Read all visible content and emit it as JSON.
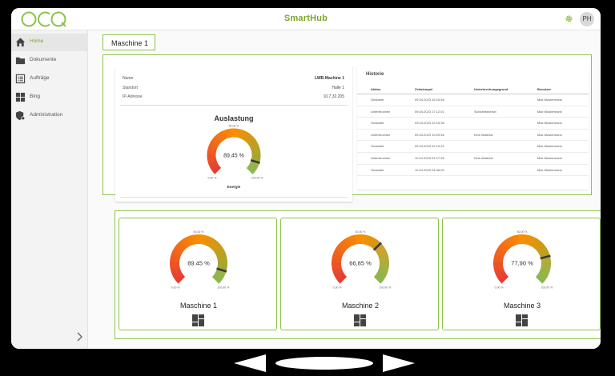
{
  "header": {
    "logo_text": "OCQ",
    "app_title": "SmartHub",
    "user_initials": "PH",
    "settings_icon": "gear-icon"
  },
  "sidebar": {
    "items": [
      {
        "label": "Home",
        "icon": "home-icon",
        "active": true
      },
      {
        "label": "Dokumente",
        "icon": "folder-icon",
        "active": false
      },
      {
        "label": "Aufträge",
        "icon": "list-icon",
        "active": false
      },
      {
        "label": "Bing",
        "icon": "grid-icon",
        "active": false
      },
      {
        "label": "Administration",
        "icon": "shield-gear-icon",
        "active": false
      }
    ],
    "collapse_icon": "chevron-right-icon"
  },
  "page": {
    "title": "Maschine 1"
  },
  "info": {
    "rows": [
      {
        "label": "Name",
        "value": "LWB-Machine 1"
      },
      {
        "label": "Standort",
        "value": "Halle 1"
      },
      {
        "label": "IP-Adresse",
        "value": "10.7.32.205"
      }
    ]
  },
  "main_gauge": {
    "title": "Auslastung",
    "value_text": "89,45 %",
    "value": 89.45,
    "min_label": "0,00 %",
    "mid_label": "50,00 %",
    "max_label": "100,00 %",
    "caption": "Energie"
  },
  "history": {
    "title": "Historie",
    "columns": [
      "Aktion",
      "Zeitstempel",
      "Unterbrechungsgrund",
      "Benutzer"
    ],
    "rows": [
      [
        "Gestartet",
        "09.04.2023 16:10:48",
        "",
        "Max Mustermann"
      ],
      [
        "Unterbrochen",
        "09.04.2023 17:12:01",
        "Schichtwechsel",
        "Max Mustermann"
      ],
      [
        "Gestartet",
        "09.04.2023 19:15:36",
        "",
        "Max Mustermann"
      ],
      [
        "Unterbrochen",
        "09.04.2023 19:29:46",
        "Kein Material",
        "Max Mustermann"
      ],
      [
        "Gestartet",
        "09.04.2023 22:10:24",
        "",
        "Max Mustermann"
      ],
      [
        "Unterbrochen",
        "10.04.2023 01:17:26",
        "Kein Material",
        "Max Mustermann"
      ],
      [
        "Gestartet",
        "10.04.2023 04:48:20",
        "",
        "Max Mustermann"
      ]
    ]
  },
  "machines": [
    {
      "name": "Maschine 1",
      "value": 89.45,
      "value_text": "89.45 %",
      "min_label": "0,00 %",
      "mid_label": "50,00 %",
      "max_label": "100,00 %",
      "icon": "dashboard-grid-icon"
    },
    {
      "name": "Maschine 2",
      "value": 66.85,
      "value_text": "66,85 %",
      "min_label": "0,00 %",
      "mid_label": "50,00 %",
      "max_label": "100,00 %",
      "icon": "dashboard-grid-icon"
    },
    {
      "name": "Maschine 3",
      "value": 77.9,
      "value_text": "77,90 %",
      "min_label": "0,00 %",
      "mid_label": "50,00 %",
      "max_label": "100,00 %",
      "icon": "dashboard-grid-icon"
    }
  ],
  "colors": {
    "accent": "#8bc34a",
    "gauge_low": "#e53935",
    "gauge_mid": "#fb8c00",
    "gauge_high": "#7cb342"
  }
}
